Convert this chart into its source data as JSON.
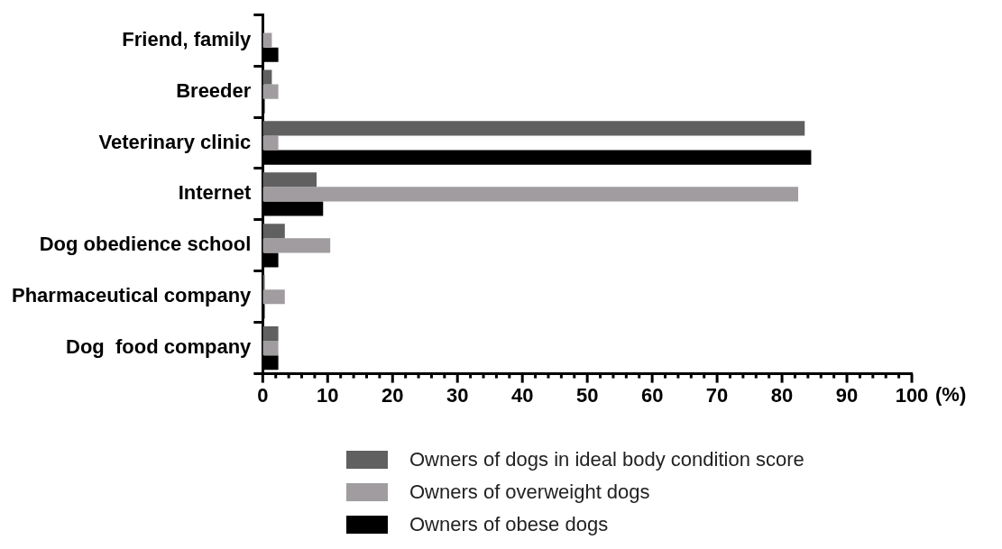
{
  "chart_data": {
    "type": "bar",
    "orientation": "horizontal",
    "xlabel": "(%)",
    "categories": [
      "Friend, family",
      "Breeder",
      "Veterinary clinic",
      "Internet",
      "Dog obedience school",
      "Pharmaceutical company",
      "Dog  food company"
    ],
    "series": [
      {
        "name": "Owners of dogs in ideal body condition score",
        "color": "#606060",
        "values": [
          0,
          1.4,
          83.5,
          8.3,
          3.4,
          0.3,
          2.4
        ]
      },
      {
        "name": "Owners of overweight dogs",
        "color": "#a09ca0",
        "values": [
          1.4,
          2.4,
          2.4,
          82.5,
          10.4,
          3.4,
          2.4
        ]
      },
      {
        "name": "Owners of obese dogs",
        "color": "#000000",
        "values": [
          2.4,
          0.3,
          84.5,
          9.3,
          2.4,
          0.3,
          2.4
        ]
      }
    ],
    "xlim": [
      0,
      100
    ],
    "xticks": [
      0,
      {
        "value": 2,
        "label": null
      },
      {
        "value": 4,
        "label": null
      },
      {
        "value": 6,
        "label": null
      },
      {
        "value": 8,
        "label": null
      },
      10,
      {
        "value": 12,
        "label": null
      },
      {
        "value": 14,
        "label": null
      },
      {
        "value": 16,
        "label": null
      },
      {
        "value": 18,
        "label": null
      },
      20,
      {
        "value": 22,
        "label": null
      },
      {
        "value": 24,
        "label": null
      },
      {
        "value": 26,
        "label": null
      },
      {
        "value": 28,
        "label": null
      },
      30,
      {
        "value": 32,
        "label": null
      },
      {
        "value": 34,
        "label": null
      },
      {
        "value": 36,
        "label": null
      },
      {
        "value": 38,
        "label": null
      },
      40,
      {
        "value": 42,
        "label": null
      },
      {
        "value": 44,
        "label": null
      },
      {
        "value": 46,
        "label": null
      },
      {
        "value": 48,
        "label": null
      },
      50,
      {
        "value": 52,
        "label": null
      },
      {
        "value": 54,
        "label": null
      },
      {
        "value": 56,
        "label": null
      },
      {
        "value": 58,
        "label": null
      },
      60,
      {
        "value": 62,
        "label": null
      },
      {
        "value": 64,
        "label": null
      },
      {
        "value": 66,
        "label": null
      },
      {
        "value": 68,
        "label": null
      },
      70,
      {
        "value": 72,
        "label": null
      },
      {
        "value": 74,
        "label": null
      },
      {
        "value": 76,
        "label": null
      },
      {
        "value": 78,
        "label": null
      },
      80,
      {
        "value": 82,
        "label": null
      },
      {
        "value": 84,
        "label": null
      },
      {
        "value": 86,
        "label": null
      },
      {
        "value": 88,
        "label": null
      },
      90,
      {
        "value": 92,
        "label": null
      },
      {
        "value": 94,
        "label": null
      },
      {
        "value": 96,
        "label": null
      },
      {
        "value": 98,
        "label": null
      },
      100
    ],
    "grid": false,
    "legend": "bottom"
  }
}
